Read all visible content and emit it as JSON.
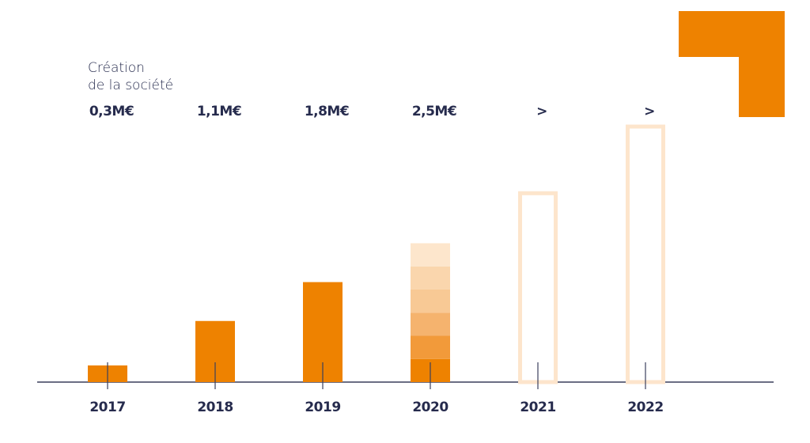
{
  "chart_data": {
    "type": "bar",
    "annotation": [
      "Création",
      "de la société"
    ],
    "categories": [
      "2017",
      "2018",
      "2019",
      "2020",
      "2021",
      "2022"
    ],
    "values": [
      0.3,
      1.1,
      1.8,
      2.5,
      3.4,
      4.6
    ],
    "value_labels": [
      "0,3M€",
      "1,1M€",
      "1,8M€",
      "2,5M€",
      ">",
      ">"
    ],
    "styles": [
      "solid",
      "solid",
      "solid",
      "gradient",
      "outline",
      "outline"
    ],
    "color": "#ee8200",
    "outline_color": "#fde5cc",
    "gradient_colors": [
      "#ee8200",
      "#f29a3a",
      "#f5b36e",
      "#f8c995",
      "#fad6ad",
      "#fde6cc"
    ]
  }
}
